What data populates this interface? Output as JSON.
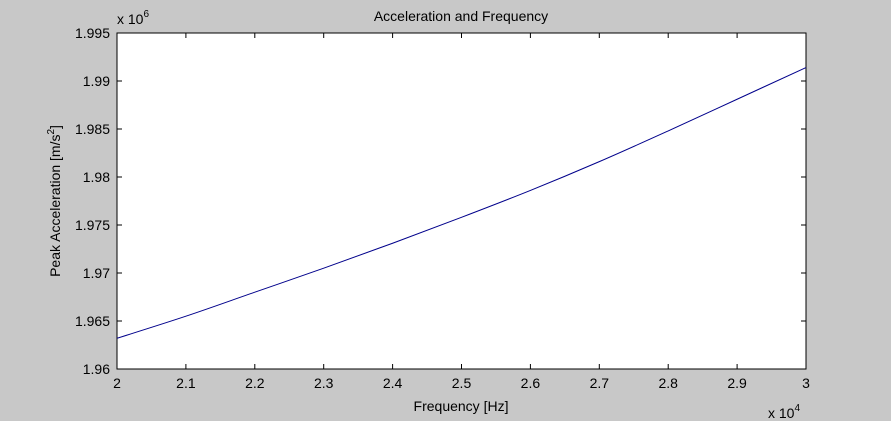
{
  "figure": {
    "background": "#c8c8c8"
  },
  "chart_data": {
    "type": "line",
    "title": "Acceleration and Frequency",
    "xlabel": "Frequency [Hz]",
    "ylabel_main": "Peak Acceleration [m/s",
    "ylabel_sup": "2",
    "ylabel_end": "]",
    "x_multiplier": {
      "base": "x 10",
      "exp": "4"
    },
    "y_multiplier": {
      "base": "x 10",
      "exp": "6"
    },
    "xlim": [
      2,
      3
    ],
    "ylim": [
      1.96,
      1.995
    ],
    "xticks": [
      2,
      2.1,
      2.2,
      2.3,
      2.4,
      2.5,
      2.6,
      2.7,
      2.8,
      2.9,
      3
    ],
    "xtick_labels": [
      "2",
      "2.1",
      "2.2",
      "2.3",
      "2.4",
      "2.5",
      "2.6",
      "2.7",
      "2.8",
      "2.9",
      "3"
    ],
    "yticks": [
      1.96,
      1.965,
      1.97,
      1.975,
      1.98,
      1.985,
      1.99,
      1.995
    ],
    "ytick_labels": [
      "1.96",
      "1.965",
      "1.97",
      "1.975",
      "1.98",
      "1.985",
      "1.99",
      "1.995"
    ],
    "grid": false,
    "series": [
      {
        "color": "#00008b",
        "x": [
          2.0,
          2.1,
          2.2,
          2.3,
          2.4,
          2.5,
          2.6,
          2.7,
          2.8,
          2.9,
          3.0
        ],
        "y": [
          1.9632,
          1.9655,
          1.968,
          1.9705,
          1.9731,
          1.9758,
          1.9786,
          1.9816,
          1.9848,
          1.9881,
          1.9914
        ]
      }
    ]
  }
}
